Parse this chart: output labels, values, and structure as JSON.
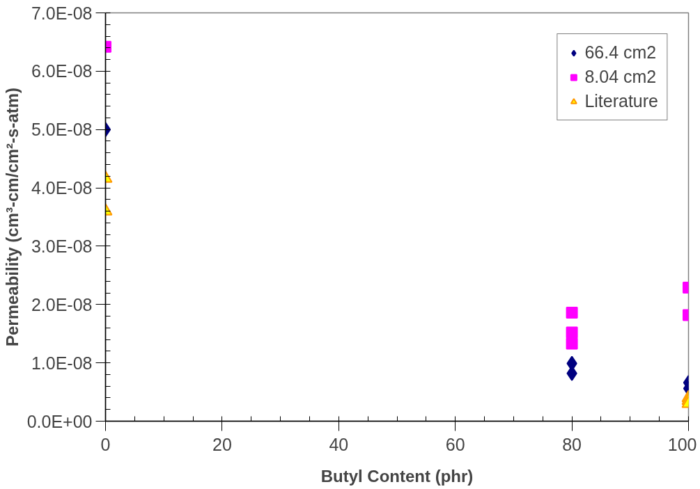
{
  "chart_data": {
    "type": "scatter",
    "xlabel": "Butyl Content (phr)",
    "ylabel": "Permeability (cm³-cm/cm²-s-atm)",
    "xlim": [
      0,
      100
    ],
    "xticks": [
      0,
      20,
      40,
      60,
      80,
      100
    ],
    "ylim": [
      0,
      7e-08
    ],
    "yticks": [
      {
        "value": 0,
        "label": "0.0E+00"
      },
      {
        "value": 1e-08,
        "label": "1.0E-08"
      },
      {
        "value": 2e-08,
        "label": "2.0E-08"
      },
      {
        "value": 3e-08,
        "label": "3.0E-08"
      },
      {
        "value": 4e-08,
        "label": "4.0E-08"
      },
      {
        "value": 5e-08,
        "label": "5.0E-08"
      },
      {
        "value": 6e-08,
        "label": "6.0E-08"
      },
      {
        "value": 7e-08,
        "label": "7.0E-08"
      }
    ],
    "grid": false,
    "legend": "top right",
    "series": [
      {
        "name": "66.4 cm2",
        "color": "#000080",
        "marker": "diamond",
        "x": [
          0,
          80,
          80,
          100,
          100
        ],
        "values": [
          5e-08,
          9.9e-09,
          8.2e-09,
          6.6e-09,
          5.6e-09
        ]
      },
      {
        "name": "8.04 cm2",
        "color": "#ff00ff",
        "marker": "square",
        "x": [
          0,
          80,
          80,
          80,
          100,
          100
        ],
        "values": [
          6.42e-08,
          1.86e-08,
          1.52e-08,
          1.33e-08,
          2.29e-08,
          1.82e-08
        ]
      },
      {
        "name": "Literature",
        "color": "#ffff00",
        "marker": "triangle",
        "x": [
          0,
          0,
          100,
          100,
          100
        ],
        "values": [
          4.16e-08,
          3.6e-08,
          4e-09,
          3.5e-09,
          3e-09
        ]
      }
    ]
  }
}
